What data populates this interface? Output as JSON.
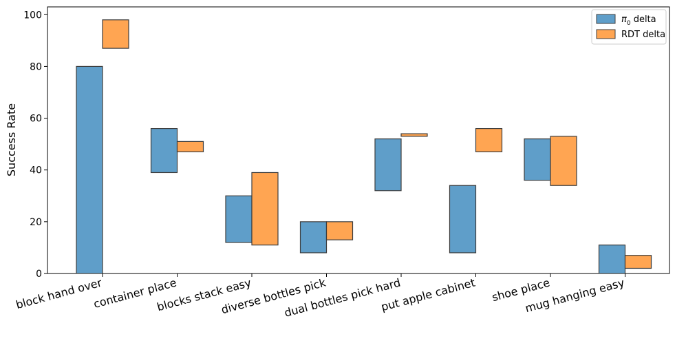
{
  "chart_data": {
    "type": "bar",
    "subtype": "floating-range",
    "title": "",
    "xlabel": "",
    "ylabel": "Success Rate",
    "ylim": [
      0,
      103
    ],
    "yticks": [
      0,
      20,
      40,
      60,
      80,
      100
    ],
    "grid": false,
    "legend_position": "top-right",
    "categories": [
      "block hand over",
      "container place",
      "blocks stack easy",
      "diverse bottles pick",
      "dual bottles pick hard",
      "put apple cabinet",
      "shoe place",
      "mug hanging easy"
    ],
    "series": [
      {
        "name_symbol": "π",
        "name_subscript": "0",
        "name_suffix": " delta",
        "color": "#5f9ec9",
        "ranges": [
          [
            0,
            80
          ],
          [
            39,
            56
          ],
          [
            12,
            30
          ],
          [
            8,
            20
          ],
          [
            32,
            52
          ],
          [
            8,
            34
          ],
          [
            36,
            52
          ],
          [
            0,
            11
          ]
        ]
      },
      {
        "name": "RDT delta",
        "color": "#ffa552",
        "ranges": [
          [
            87,
            98
          ],
          [
            47,
            51
          ],
          [
            11,
            39
          ],
          [
            13,
            20
          ],
          [
            53,
            54
          ],
          [
            47,
            56
          ],
          [
            34,
            53
          ],
          [
            2,
            7
          ]
        ]
      }
    ],
    "edge_color": "#3d3d3d"
  }
}
